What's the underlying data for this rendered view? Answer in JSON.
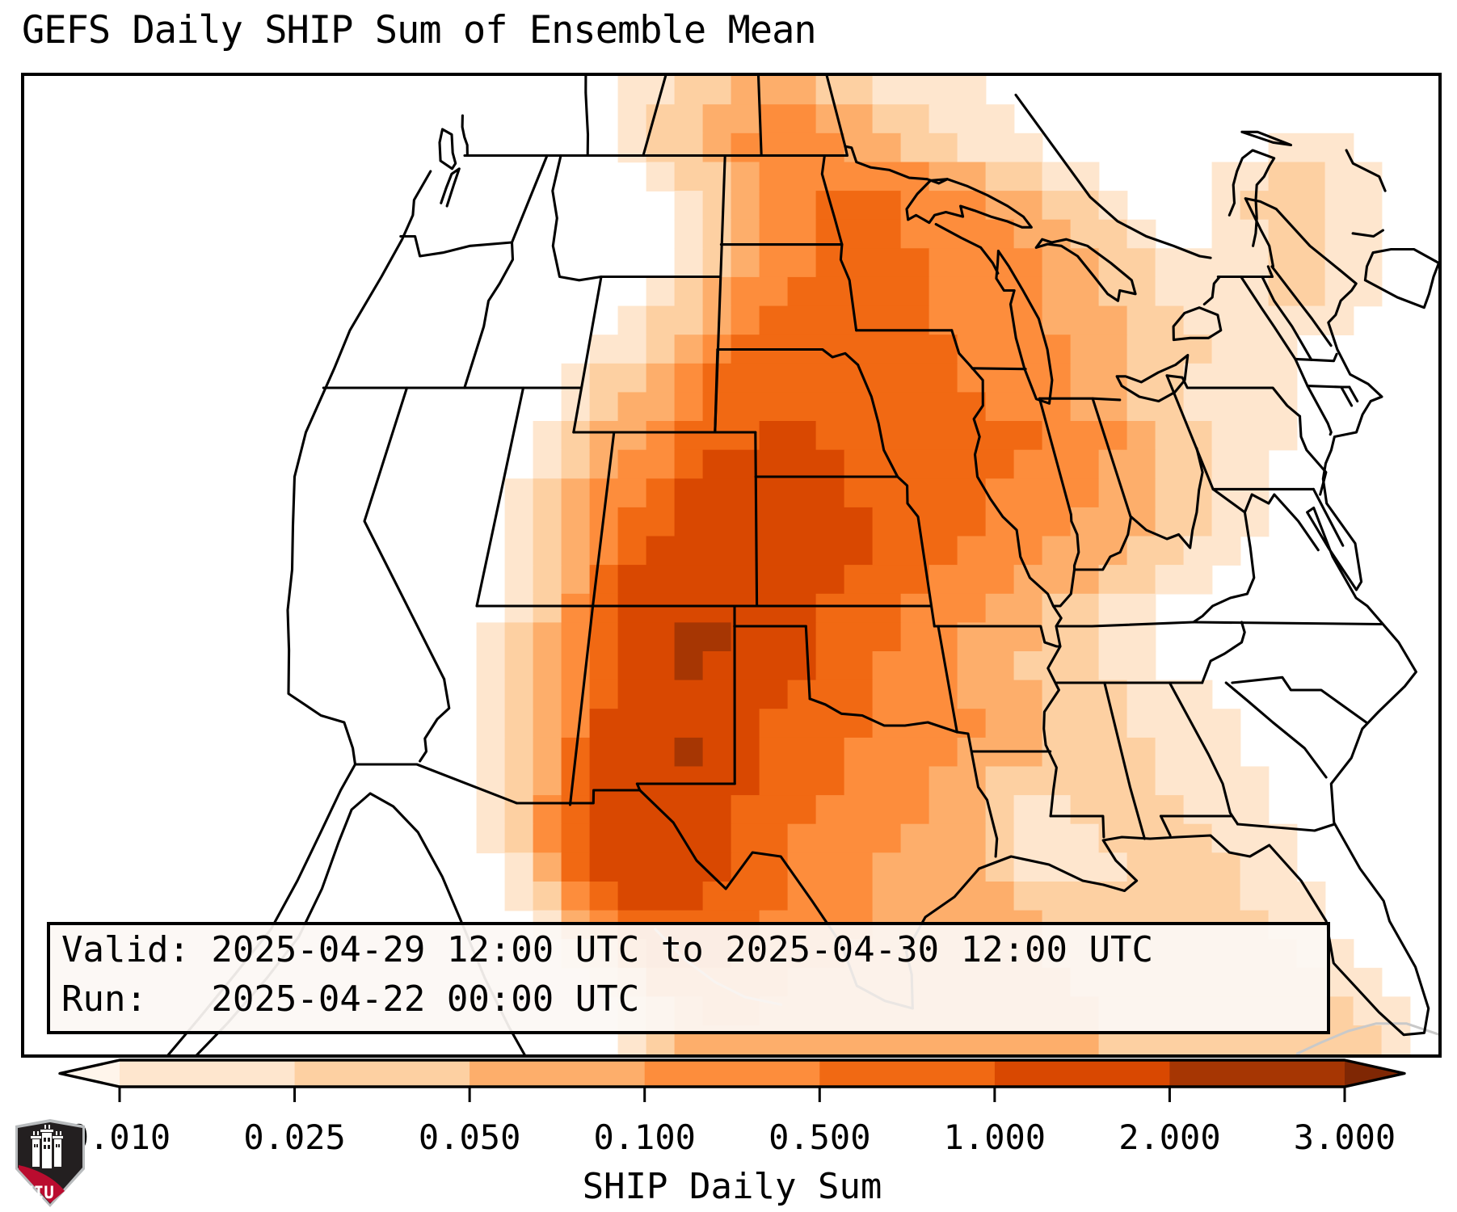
{
  "page": {
    "title": "GEFS Daily SHIP Sum of Ensemble Mean",
    "background": "#ffffff"
  },
  "info_box": {
    "line1": "Valid: 2025-04-29 12:00 UTC to 2025-04-30 12:00 UTC",
    "line2": "Run:   2025-04-22 00:00 UTC"
  },
  "colorbar": {
    "label": "SHIP Daily Sum",
    "ticks": [
      "0.010",
      "0.025",
      "0.050",
      "0.100",
      "0.500",
      "1.000",
      "2.000",
      "3.000"
    ],
    "under_color": "#fff5eb",
    "over_color": "#7f2704",
    "outline_color": "#000000"
  },
  "logo": {
    "text": "NIU",
    "black": "#231f20",
    "red": "#ba0c2f",
    "trim": "#b9bcbe"
  },
  "chart_data": {
    "type": "heatmap",
    "title": "GEFS Daily SHIP Sum of Ensemble Mean",
    "parameter": "SHIP Daily Sum",
    "valid": "2025-04-29 12:00 UTC to 2025-04-30 12:00 UTC",
    "run": "2025-04-22 00:00 UTC",
    "region": "CONUS (GEFS ensemble mean, map with state borders)",
    "legend_position": "bottom",
    "level_boundaries": [
      0.01,
      0.025,
      0.05,
      0.1,
      0.5,
      1.0,
      2.0,
      3.0
    ],
    "palette": [
      "#fee6ce",
      "#fdd0a2",
      "#fdae6b",
      "#fd8d3c",
      "#f16913",
      "#d94801",
      "#a63603"
    ],
    "under_color": "#fff5eb",
    "over_color": "#7f2704",
    "max_note": "maximum SHIP daily sum 2-3+ over SW Oklahoma / North Texas; broad 1-2 over southern Plains; 0.5-1 Midwest and Gulf; white (<0.01) over the West",
    "grid": {
      "cols": 50,
      "rows": 34,
      "encoding": "one digit per cell: 0=<0.01, 1=0.01-0.025, 2=0.025-0.05, 3=0.05-0.1, 4=0.1-0.5, 5=0.5-1, 6=1-2, 7=2-3+",
      "rows_data": [
        "00000000000000000000011223332211110000000000000000",
        "00000000000000000000012233443322111000000000000000",
        "00000000000000000000012234444332211100000000111000",
        "00000000000000000000001223444444332211000011221100",
        "00000000000000000000000123445554443322100012221100",
        "00000000000000000000000123445554444332210011221100",
        "00000000000000000000000123445555444433221111221100",
        "00000000000000000000001234455555444433221111221100",
        "00000000000000000000012234555555444433322111111000",
        "00000000000000000000112345555555544443322211100000",
        "00000000000000000001223455555555544443322111100000",
        "00000000000000000001233455555555554443322111100000",
        "00000000000000000012334555665555555544432211100000",
        "00000000000000000012344566666555555444332211000000",
        "00000000000000000123445666666555554444332211000000",
        "00000000000000000123455666666655554443332211000000",
        "00000000000000000123456666666655544433322110000000",
        "00000000000000000123566666666555444333221100000000",
        "00000000000000000124566666665554443322110000000000",
        "00000000000000001234566776665554433322110000000000",
        "00000000000000001234566766665544433222110000000000",
        "00000000000000001234566666655544433322211100000000",
        "00000000000000001234666666555544443322211110000000",
        "00000000000000001235666766555444433322221110000000",
        "00000000000000001235666666555444332222221111000000",
        "00000000000000001245666665554444332112222111000000",
        "00000000000000001245666665544443332111222211100000",
        "00000000000000000135666665544433332111122221100000",
        "00000000000000000124566655544433333222222221110000",
        "00000000000000000013455555444433333322222222110000",
        "00000000000000000001245554444333333322222222211000",
        "00000000000000000000124444433333333332222222221100",
        "00000000000000000000012344333333333333222222222110",
        "00000000000000000000012333333333333333222222222210"
      ]
    }
  }
}
